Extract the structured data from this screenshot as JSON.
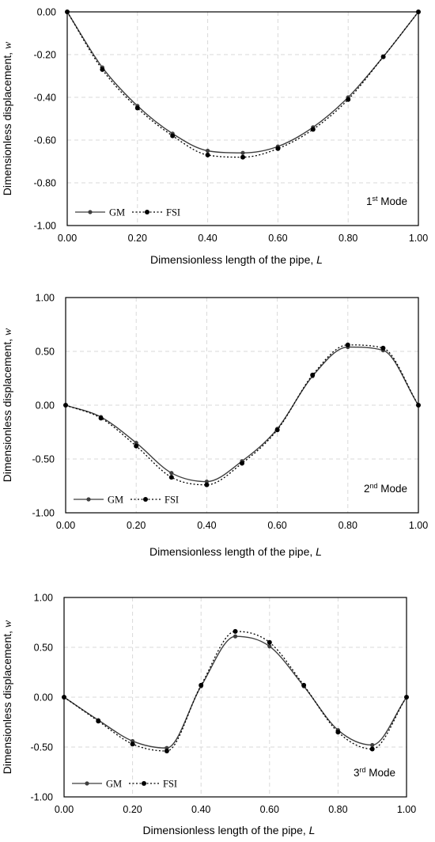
{
  "chart_data": [
    {
      "type": "line",
      "annotation": {
        "main": "1",
        "sup": "st",
        "rest": " Mode"
      },
      "xlabel": {
        "main": "Dimensionless length of the pipe, ",
        "var": "L"
      },
      "ylabel": {
        "main": "Dimensionless displacement, ",
        "var": "w"
      },
      "xlim": [
        0,
        1
      ],
      "ylim": [
        -1,
        0
      ],
      "x_ticks": [
        "0.00",
        "0.20",
        "0.40",
        "0.60",
        "0.80",
        "1.00"
      ],
      "y_ticks": [
        "0.00",
        "-0.20",
        "-0.40",
        "-0.60",
        "-0.80",
        "-1.00"
      ],
      "grid": true,
      "legend_position": "bottom-left",
      "series": [
        {
          "name": "GM",
          "style": "solid",
          "color": "#3f3f3f",
          "x": [
            0,
            0.1,
            0.2,
            0.3,
            0.4,
            0.5,
            0.6,
            0.7,
            0.8,
            0.9,
            1.0
          ],
          "y": [
            0,
            -0.26,
            -0.44,
            -0.57,
            -0.65,
            -0.66,
            -0.63,
            -0.54,
            -0.4,
            -0.21,
            0
          ]
        },
        {
          "name": "FSI",
          "style": "dotted",
          "color": "#000000",
          "x": [
            0,
            0.1,
            0.2,
            0.3,
            0.4,
            0.5,
            0.6,
            0.7,
            0.8,
            0.9,
            1.0
          ],
          "y": [
            0,
            -0.27,
            -0.45,
            -0.58,
            -0.67,
            -0.68,
            -0.64,
            -0.55,
            -0.41,
            -0.21,
            0
          ]
        }
      ]
    },
    {
      "type": "line",
      "annotation": {
        "main": "2",
        "sup": "nd",
        "rest": " Mode"
      },
      "xlabel": {
        "main": "Dimensionless length of the pipe, ",
        "var": "L"
      },
      "ylabel": {
        "main": "Dimensionless displacement, ",
        "var": "w"
      },
      "xlim": [
        0,
        1
      ],
      "ylim": [
        -1,
        1
      ],
      "x_ticks": [
        "0.00",
        "0.20",
        "0.40",
        "0.60",
        "0.80",
        "1.00"
      ],
      "y_ticks": [
        "1.00",
        "0.50",
        "0.00",
        "-0.50",
        "-1.00"
      ],
      "grid": true,
      "legend_position": "bottom-left",
      "series": [
        {
          "name": "GM",
          "style": "solid",
          "color": "#3f3f3f",
          "x": [
            0,
            0.1,
            0.2,
            0.3,
            0.4,
            0.5,
            0.6,
            0.7,
            0.8,
            0.9,
            1.0
          ],
          "y": [
            0,
            -0.11,
            -0.35,
            -0.63,
            -0.71,
            -0.52,
            -0.22,
            0.27,
            0.54,
            0.51,
            0
          ]
        },
        {
          "name": "FSI",
          "style": "dotted",
          "color": "#000000",
          "x": [
            0,
            0.1,
            0.2,
            0.3,
            0.4,
            0.5,
            0.6,
            0.7,
            0.8,
            0.9,
            1.0
          ],
          "y": [
            0,
            -0.12,
            -0.38,
            -0.67,
            -0.74,
            -0.54,
            -0.23,
            0.28,
            0.56,
            0.53,
            0
          ]
        }
      ]
    },
    {
      "type": "line",
      "annotation": {
        "main": "3",
        "sup": "rd",
        "rest": " Mode"
      },
      "xlabel": {
        "main": "Dimensionless length of the pipe, ",
        "var": "L"
      },
      "ylabel": {
        "main": "Dimensionless displacement, ",
        "var": "w"
      },
      "xlim": [
        0,
        1
      ],
      "ylim": [
        -1,
        1
      ],
      "x_ticks": [
        "0.00",
        "0.20",
        "0.40",
        "0.60",
        "0.80",
        "1.00"
      ],
      "y_ticks": [
        "1.00",
        "0.50",
        "0.00",
        "-0.50",
        "-1.00"
      ],
      "grid": true,
      "legend_position": "bottom-left",
      "series": [
        {
          "name": "GM",
          "style": "solid",
          "color": "#3f3f3f",
          "x": [
            0,
            0.1,
            0.2,
            0.3,
            0.4,
            0.5,
            0.6,
            0.7,
            0.8,
            0.9,
            1.0
          ],
          "y": [
            0,
            -0.23,
            -0.44,
            -0.51,
            0.11,
            0.61,
            0.51,
            0.11,
            -0.33,
            -0.48,
            0
          ]
        },
        {
          "name": "FSI",
          "style": "dotted",
          "color": "#000000",
          "x": [
            0,
            0.1,
            0.2,
            0.3,
            0.4,
            0.5,
            0.6,
            0.7,
            0.8,
            0.9,
            1.0
          ],
          "y": [
            0,
            -0.24,
            -0.47,
            -0.54,
            0.12,
            0.66,
            0.55,
            0.12,
            -0.35,
            -0.52,
            0
          ]
        }
      ]
    }
  ]
}
